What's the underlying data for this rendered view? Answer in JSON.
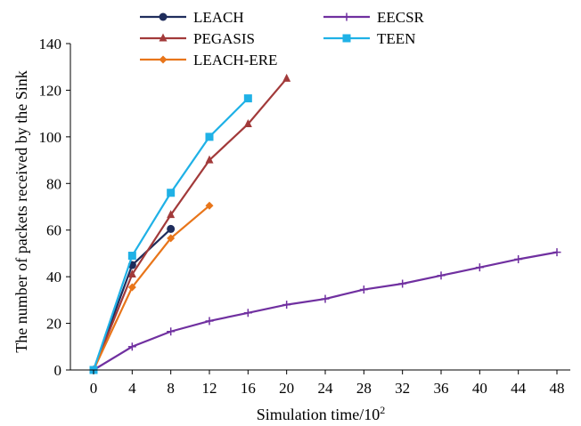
{
  "chart_data": {
    "type": "line",
    "xlabel": "Simulation time/10",
    "xlabel_superscript": "2",
    "ylabel": "The number of packets received by the Sink",
    "xlim": [
      0,
      48
    ],
    "ylim": [
      0,
      140
    ],
    "xticks": [
      0,
      4,
      8,
      12,
      16,
      20,
      24,
      28,
      32,
      36,
      40,
      44,
      48
    ],
    "yticks": [
      0,
      20,
      40,
      60,
      80,
      100,
      120,
      140
    ],
    "grid": false,
    "legend_position": "top",
    "series": [
      {
        "name": "LEACH",
        "color": "#1f2d5c",
        "marker": "circle",
        "x": [
          0,
          4,
          8
        ],
        "y": [
          0,
          45,
          60.5
        ]
      },
      {
        "name": "PEGASIS",
        "color": "#a23a3a",
        "marker": "triangle",
        "x": [
          0,
          4,
          8,
          12,
          16,
          20
        ],
        "y": [
          0,
          41,
          66.5,
          90,
          105.5,
          125
        ]
      },
      {
        "name": "LEACH-ERE",
        "color": "#e8751a",
        "marker": "diamond",
        "x": [
          0,
          4,
          8,
          12
        ],
        "y": [
          0,
          35.5,
          56.5,
          70.5
        ]
      },
      {
        "name": "EECSR",
        "color": "#7030a0",
        "marker": "plus",
        "x": [
          0,
          4,
          8,
          12,
          16,
          20,
          24,
          28,
          32,
          36,
          40,
          44,
          48
        ],
        "y": [
          0,
          10,
          16.5,
          21,
          24.5,
          28,
          30.5,
          34.5,
          37,
          40.5,
          44,
          47.5,
          50.5
        ]
      },
      {
        "name": "TEEN",
        "color": "#1fb1e6",
        "marker": "square",
        "x": [
          0,
          4,
          8,
          12,
          16
        ],
        "y": [
          0,
          49,
          76,
          100,
          116.5
        ]
      }
    ]
  }
}
